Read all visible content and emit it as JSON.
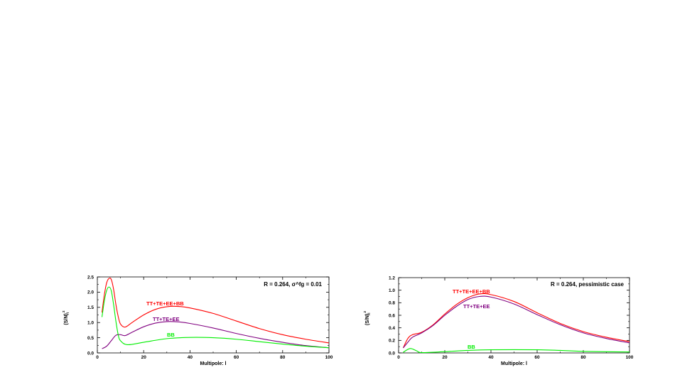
{
  "chart_data": [
    {
      "type": "line",
      "annotation": "R = 0.264, σ^fg = 0.01",
      "annotation_main": "R = 0.264, σ",
      "annotation_sup": "fg",
      "annotation_tail": " = 0.01",
      "xlabel": "Multipole: l",
      "ylabel": "(S/N)",
      "ylabel_sub": "l",
      "ylabel_sup": "2",
      "xlim": [
        0,
        100
      ],
      "ylim": [
        0,
        2.5
      ],
      "xticks": [
        "0",
        "20",
        "40",
        "60",
        "80",
        "100"
      ],
      "yticks": [
        "0.0",
        "0.5",
        "1.0",
        "1.5",
        "2.0",
        "2.5"
      ],
      "grid": false,
      "series": [
        {
          "name": "TT+TE+EE+BB",
          "color": "#ff0000",
          "x": [
            2,
            3,
            4,
            5,
            6,
            7,
            8,
            9,
            10,
            12,
            15,
            20,
            25,
            30,
            35,
            40,
            50,
            60,
            70,
            80,
            90,
            100
          ],
          "y": [
            1.33,
            1.9,
            2.3,
            2.45,
            2.42,
            2.1,
            1.6,
            1.2,
            0.95,
            0.85,
            1.0,
            1.25,
            1.43,
            1.52,
            1.53,
            1.48,
            1.3,
            1.05,
            0.8,
            0.6,
            0.45,
            0.33
          ]
        },
        {
          "name": "TT+TE+EE",
          "color": "#800080",
          "x": [
            2,
            4,
            6,
            8,
            10,
            12,
            15,
            20,
            25,
            30,
            35,
            40,
            50,
            60,
            70,
            80,
            90,
            100
          ],
          "y": [
            0.14,
            0.22,
            0.4,
            0.58,
            0.6,
            0.57,
            0.68,
            0.86,
            0.98,
            1.03,
            1.02,
            0.97,
            0.82,
            0.64,
            0.48,
            0.35,
            0.24,
            0.17
          ]
        },
        {
          "name": "BB",
          "color": "#00ee00",
          "x": [
            2,
            3,
            4,
            5,
            6,
            7,
            8,
            9,
            10,
            13,
            20,
            30,
            40,
            50,
            60,
            70,
            80,
            90,
            100
          ],
          "y": [
            1.18,
            1.7,
            2.05,
            2.17,
            2.05,
            1.6,
            1.05,
            0.6,
            0.4,
            0.27,
            0.35,
            0.47,
            0.51,
            0.5,
            0.45,
            0.37,
            0.29,
            0.22,
            0.17
          ]
        }
      ]
    },
    {
      "type": "line",
      "annotation": "R = 0.264, pessimistic case",
      "xlabel": "Multipole: l",
      "ylabel": "(S/N)",
      "ylabel_sub": "l",
      "ylabel_sup": "2",
      "xlim": [
        0,
        100
      ],
      "ylim": [
        0,
        1.2
      ],
      "xticks": [
        "0",
        "20",
        "40",
        "60",
        "80",
        "100"
      ],
      "yticks": [
        "0.0",
        "0.2",
        "0.4",
        "0.6",
        "0.8",
        "1.0",
        "1.2"
      ],
      "grid": false,
      "series": [
        {
          "name": "TT+TE+EE+BB",
          "color": "#ff0000",
          "x": [
            2,
            4,
            6,
            10,
            15,
            20,
            25,
            30,
            35,
            40,
            50,
            60,
            70,
            80,
            90,
            100
          ],
          "y": [
            0.08,
            0.23,
            0.29,
            0.33,
            0.45,
            0.62,
            0.77,
            0.88,
            0.94,
            0.93,
            0.82,
            0.64,
            0.47,
            0.34,
            0.25,
            0.18
          ]
        },
        {
          "name": "TT+TE+EE",
          "color": "#800080",
          "x": [
            2,
            4,
            6,
            10,
            15,
            20,
            25,
            30,
            35,
            40,
            50,
            60,
            70,
            80,
            90,
            100
          ],
          "y": [
            0.08,
            0.17,
            0.25,
            0.32,
            0.44,
            0.6,
            0.74,
            0.85,
            0.9,
            0.89,
            0.78,
            0.61,
            0.45,
            0.32,
            0.23,
            0.16
          ]
        },
        {
          "name": "BB",
          "color": "#00ee00",
          "x": [
            2,
            5,
            8,
            10,
            20,
            30,
            40,
            60,
            70,
            80,
            100
          ],
          "y": [
            0.01,
            0.07,
            0.03,
            0.005,
            0.02,
            0.04,
            0.05,
            0.05,
            0.04,
            0.025,
            0.015
          ]
        }
      ]
    }
  ]
}
